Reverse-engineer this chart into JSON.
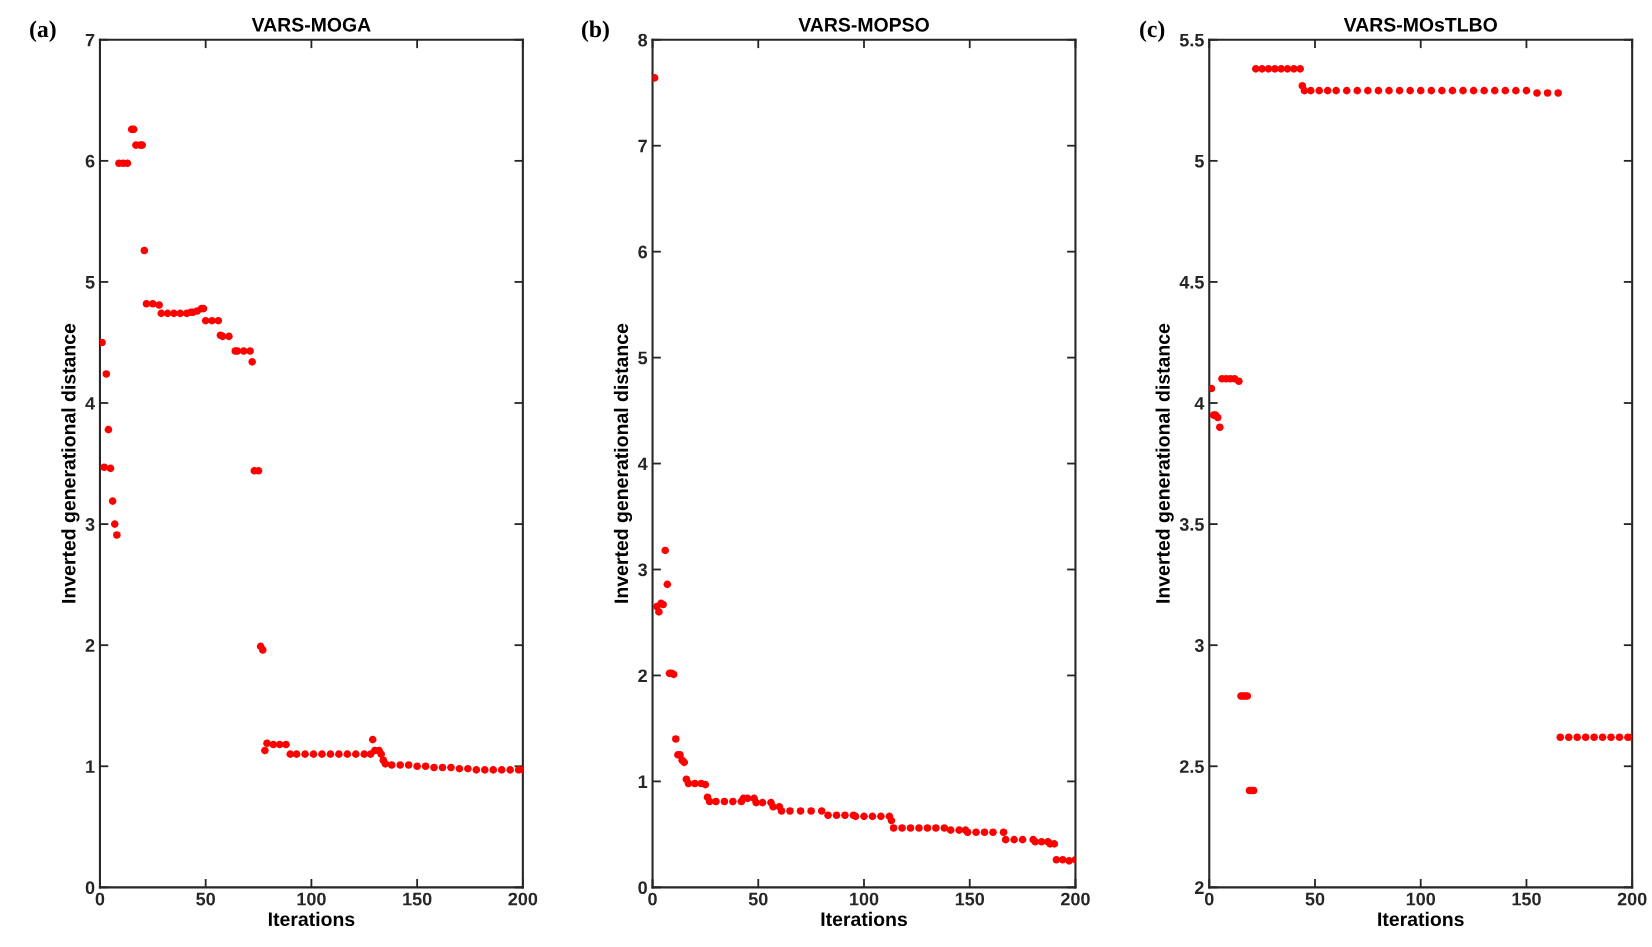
{
  "chart_data": [
    {
      "type": "scatter",
      "title": "VARS-MOGA",
      "xlabel": "Iterations",
      "ylabel": "Inverted generational distance",
      "annotations": [
        "(a)"
      ],
      "xlim": [
        0,
        200
      ],
      "xticks": [
        0,
        50,
        100,
        150,
        200
      ],
      "ylim": [
        0,
        7
      ],
      "yticks": [
        0,
        1,
        2,
        3,
        4,
        5,
        6,
        7
      ],
      "grid": false,
      "marker": "circle",
      "series": [
        {
          "color": "#ff0000",
          "x": [
            1,
            2,
            3,
            4,
            5,
            6,
            7,
            8,
            9,
            11,
            13,
            15,
            16,
            17,
            19,
            20,
            21,
            22,
            25,
            28,
            29,
            32,
            35,
            38,
            41,
            43,
            44,
            46,
            48,
            49,
            50,
            53,
            56,
            57,
            58,
            61,
            64,
            65,
            68,
            71,
            72,
            73,
            75,
            76,
            77,
            78,
            79,
            82,
            85,
            88,
            90,
            93,
            97,
            101,
            105,
            109,
            113,
            117,
            121,
            125,
            128,
            129,
            130,
            132,
            133,
            134,
            135,
            138,
            142,
            146,
            150,
            154,
            158,
            162,
            166,
            170,
            174,
            178,
            182,
            186,
            190,
            194,
            198,
            200
          ],
          "values": [
            4.5,
            3.47,
            4.24,
            3.78,
            3.46,
            3.19,
            3.0,
            2.91,
            5.98,
            5.98,
            5.98,
            6.26,
            6.26,
            6.13,
            6.13,
            6.13,
            5.26,
            4.82,
            4.82,
            4.81,
            4.74,
            4.74,
            4.74,
            4.74,
            4.74,
            4.75,
            4.75,
            4.76,
            4.78,
            4.78,
            4.68,
            4.68,
            4.68,
            4.56,
            4.55,
            4.55,
            4.43,
            4.43,
            4.43,
            4.43,
            4.34,
            3.44,
            3.44,
            1.99,
            1.96,
            1.13,
            1.19,
            1.18,
            1.18,
            1.18,
            1.1,
            1.1,
            1.1,
            1.1,
            1.1,
            1.1,
            1.1,
            1.1,
            1.1,
            1.1,
            1.1,
            1.22,
            1.13,
            1.13,
            1.1,
            1.05,
            1.02,
            1.01,
            1.01,
            1.01,
            1.0,
            1.0,
            0.99,
            0.99,
            0.99,
            0.98,
            0.98,
            0.97,
            0.97,
            0.97,
            0.97,
            0.97,
            0.97,
            0.97
          ]
        }
      ]
    },
    {
      "type": "scatter",
      "title": "VARS-MOPSO",
      "xlabel": "Iterations",
      "ylabel": "Inverted generational distance",
      "annotations": [
        "(b)"
      ],
      "xlim": [
        0,
        200
      ],
      "xticks": [
        0,
        50,
        100,
        150,
        200
      ],
      "ylim": [
        0,
        8
      ],
      "yticks": [
        0,
        1,
        2,
        3,
        4,
        5,
        6,
        7,
        8
      ],
      "grid": false,
      "marker": "circle",
      "series": [
        {
          "color": "#ff0000",
          "x": [
            1,
            2,
            3,
            4,
            5,
            6,
            7,
            8,
            9,
            10,
            11,
            12,
            13,
            14,
            15,
            16,
            17,
            20,
            23,
            25,
            26,
            27,
            30,
            34,
            38,
            42,
            43,
            45,
            48,
            49,
            52,
            56,
            57,
            60,
            61,
            65,
            70,
            75,
            80,
            83,
            87,
            91,
            95,
            96,
            100,
            104,
            108,
            112,
            113,
            114,
            118,
            122,
            126,
            130,
            134,
            138,
            141,
            145,
            148,
            149,
            153,
            157,
            161,
            166,
            167,
            171,
            175,
            180,
            181,
            184,
            187,
            188,
            190,
            191,
            194,
            197,
            200
          ],
          "values": [
            7.64,
            2.65,
            2.6,
            2.68,
            2.67,
            3.18,
            2.86,
            2.02,
            2.02,
            2.01,
            1.4,
            1.25,
            1.25,
            1.2,
            1.18,
            1.02,
            0.98,
            0.98,
            0.98,
            0.97,
            0.85,
            0.81,
            0.81,
            0.81,
            0.81,
            0.81,
            0.84,
            0.84,
            0.84,
            0.8,
            0.8,
            0.8,
            0.76,
            0.76,
            0.72,
            0.72,
            0.72,
            0.72,
            0.72,
            0.68,
            0.68,
            0.68,
            0.68,
            0.67,
            0.67,
            0.67,
            0.67,
            0.67,
            0.63,
            0.56,
            0.56,
            0.56,
            0.56,
            0.56,
            0.56,
            0.56,
            0.54,
            0.54,
            0.54,
            0.52,
            0.52,
            0.52,
            0.52,
            0.52,
            0.45,
            0.45,
            0.45,
            0.45,
            0.43,
            0.43,
            0.43,
            0.41,
            0.41,
            0.26,
            0.26,
            0.25,
            0.26
          ]
        }
      ]
    },
    {
      "type": "scatter",
      "title": "VARS-MOsTLBO",
      "xlabel": "Iterations",
      "ylabel": "Inverted generational distance",
      "annotations": [
        "(c)"
      ],
      "xlim": [
        0,
        200
      ],
      "xticks": [
        0,
        50,
        100,
        150,
        200
      ],
      "ylim": [
        2,
        5.5
      ],
      "yticks": [
        2,
        2.5,
        3,
        3.5,
        4,
        4.5,
        5,
        5.5
      ],
      "grid": false,
      "marker": "circle",
      "series": [
        {
          "color": "#ff0000",
          "x": [
            1,
            2,
            3,
            4,
            5,
            6,
            8,
            10,
            12,
            14,
            15,
            16,
            17,
            18,
            19,
            20,
            21,
            22,
            25,
            28,
            31,
            34,
            37,
            40,
            43,
            44,
            45,
            48,
            52,
            56,
            60,
            65,
            70,
            75,
            80,
            85,
            90,
            95,
            100,
            105,
            110,
            115,
            120,
            125,
            130,
            135,
            140,
            145,
            150,
            155,
            160,
            165,
            166,
            170,
            174,
            178,
            182,
            186,
            190,
            194,
            198,
            200
          ],
          "values": [
            4.06,
            3.95,
            3.95,
            3.94,
            3.9,
            4.1,
            4.1,
            4.1,
            4.1,
            4.09,
            2.79,
            2.79,
            2.79,
            2.79,
            2.4,
            2.4,
            2.4,
            5.38,
            5.38,
            5.38,
            5.38,
            5.38,
            5.38,
            5.38,
            5.38,
            5.31,
            5.29,
            5.29,
            5.29,
            5.29,
            5.29,
            5.29,
            5.29,
            5.29,
            5.29,
            5.29,
            5.29,
            5.29,
            5.29,
            5.29,
            5.29,
            5.29,
            5.29,
            5.29,
            5.29,
            5.29,
            5.29,
            5.29,
            5.29,
            5.28,
            5.28,
            5.28,
            2.62,
            2.62,
            2.62,
            2.62,
            2.62,
            2.62,
            2.62,
            2.62,
            2.62,
            2.62
          ]
        }
      ]
    }
  ]
}
